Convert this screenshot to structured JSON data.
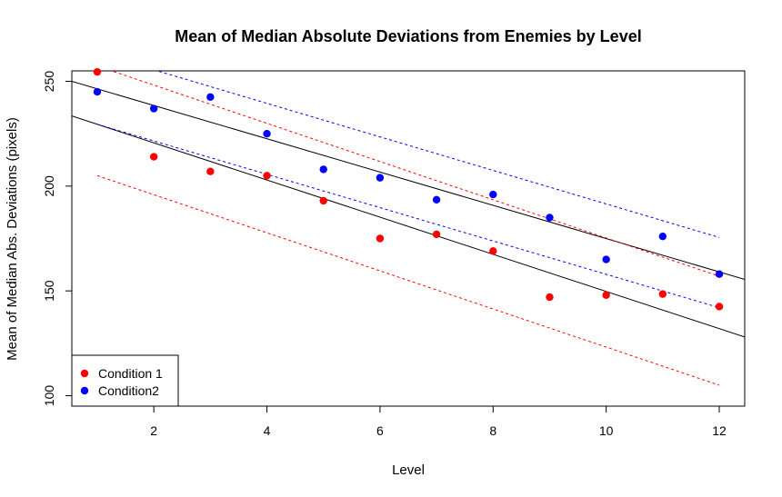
{
  "chart_data": {
    "type": "scatter",
    "title": "Mean of Median Absolute Deviations from Enemies by Level",
    "xlabel": "Level",
    "ylabel": "Mean of Median Abs. Deviations (pixels)",
    "xlim": [
      0.55,
      12.45
    ],
    "ylim": [
      95,
      255
    ],
    "xticks": [
      2,
      4,
      6,
      8,
      10,
      12
    ],
    "yticks": [
      100,
      150,
      200,
      250
    ],
    "grid": false,
    "legend_position": "bottom-left",
    "series": [
      {
        "name": "Condition 1",
        "color": "#ff0000",
        "x": [
          1,
          2,
          3,
          4,
          5,
          6,
          7,
          8,
          9,
          10,
          11,
          12
        ],
        "y": [
          254.5,
          214,
          207,
          205,
          193,
          175,
          177,
          169,
          147,
          148,
          148.5,
          142.5
        ]
      },
      {
        "name": "Condition2",
        "color": "#0000ff",
        "x": [
          1,
          2,
          3,
          4,
          5,
          6,
          7,
          8,
          9,
          10,
          11,
          12
        ],
        "y": [
          245,
          237,
          242.5,
          225,
          208,
          204,
          193.5,
          196,
          185,
          165,
          176,
          158
        ]
      }
    ],
    "regression_lines": [
      {
        "color": "#000000",
        "style": "solid",
        "x": [
          0.55,
          12.45
        ],
        "y": [
          233.5,
          128
        ]
      },
      {
        "color": "#000000",
        "style": "solid",
        "x": [
          0.55,
          12.45
        ],
        "y": [
          250,
          155.5
        ]
      }
    ],
    "interval_lines": [
      {
        "color": "#ff0000",
        "style": "dashed",
        "x": [
          1,
          12
        ],
        "y": [
          205,
          105
        ]
      },
      {
        "color": "#ff0000",
        "style": "dashed",
        "x": [
          1.2,
          12
        ],
        "y": [
          255.5,
          157
        ]
      },
      {
        "color": "#0000ff",
        "style": "dashed",
        "x": [
          1,
          12
        ],
        "y": [
          229.5,
          142
        ]
      },
      {
        "color": "#0000ff",
        "style": "dashed",
        "x": [
          2,
          12
        ],
        "y": [
          255.5,
          175.5
        ]
      }
    ]
  }
}
